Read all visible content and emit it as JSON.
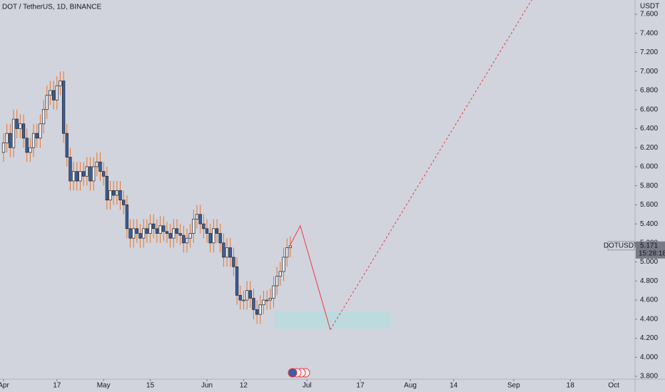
{
  "chart_data": {
    "type": "candlestick",
    "title": "DOT / TetherUS, 1D, BINANCE",
    "currency_label": "USDT",
    "symbol": "DOTUSDT",
    "last_price": {
      "value": 5.171,
      "label": "5.171"
    },
    "countdown": "15:28:18",
    "up_color": "#e9edf4",
    "down_color": "#3d5f99",
    "wick_color": "#e8742c",
    "border_color": "#1e222d",
    "xlim": [
      -1.07,
      189.4
    ],
    "xticks": [
      {
        "value": 0,
        "label": "Apr"
      },
      {
        "value": 16,
        "label": "17"
      },
      {
        "value": 30,
        "label": "May"
      },
      {
        "value": 44,
        "label": "15"
      },
      {
        "value": 61,
        "label": "Jun"
      },
      {
        "value": 72,
        "label": "12"
      },
      {
        "value": 91,
        "label": "Jul"
      },
      {
        "value": 107,
        "label": "17"
      },
      {
        "value": 122,
        "label": "Aug"
      },
      {
        "value": 135,
        "label": "14"
      },
      {
        "value": 153,
        "label": "Sep"
      },
      {
        "value": 170,
        "label": "18"
      },
      {
        "value": 183,
        "label": "Oct"
      }
    ],
    "ylim": [
      3.77,
      7.75
    ],
    "yticks": [
      {
        "value": 3.8,
        "label": "3.800"
      },
      {
        "value": 4.0,
        "label": "4.000"
      },
      {
        "value": 4.2,
        "label": "4.200"
      },
      {
        "value": 4.4,
        "label": "4.400"
      },
      {
        "value": 4.6,
        "label": "4.600"
      },
      {
        "value": 4.8,
        "label": "4.800"
      },
      {
        "value": 5.0,
        "label": "5.000"
      },
      {
        "value": 5.2,
        "label": "5.200"
      },
      {
        "value": 5.4,
        "label": "5.400"
      },
      {
        "value": 5.6,
        "label": "5.600"
      },
      {
        "value": 5.8,
        "label": "5.800"
      },
      {
        "value": 6.0,
        "label": "6.000"
      },
      {
        "value": 6.2,
        "label": "6.200"
      },
      {
        "value": 6.4,
        "label": "6.400"
      },
      {
        "value": 6.6,
        "label": "6.600"
      },
      {
        "value": 6.8,
        "label": "6.800"
      },
      {
        "value": 7.0,
        "label": "7.000"
      },
      {
        "value": 7.2,
        "label": "7.200"
      },
      {
        "value": 7.4,
        "label": "7.400"
      },
      {
        "value": 7.6,
        "label": "7.600"
      }
    ],
    "grid": false,
    "x": [
      0,
      1,
      2,
      3,
      4,
      5,
      6,
      7,
      8,
      9,
      10,
      11,
      12,
      13,
      14,
      15,
      16,
      17,
      18,
      19,
      20,
      21,
      22,
      23,
      24,
      25,
      26,
      27,
      28,
      29,
      30,
      31,
      32,
      33,
      34,
      35,
      36,
      37,
      38,
      39,
      40,
      41,
      42,
      43,
      44,
      45,
      46,
      47,
      48,
      49,
      50,
      51,
      52,
      53,
      54,
      55,
      56,
      57,
      58,
      59,
      60,
      61,
      62,
      63,
      64,
      65,
      66,
      67,
      68,
      69,
      70,
      71,
      72,
      73,
      74,
      75,
      76,
      77,
      78,
      79,
      80,
      81,
      82,
      83,
      84,
      85,
      86
    ],
    "open": [
      6.15,
      6.25,
      6.35,
      6.2,
      6.5,
      6.4,
      6.45,
      6.3,
      6.15,
      6.2,
      6.35,
      6.3,
      6.45,
      6.6,
      6.75,
      6.8,
      6.7,
      6.85,
      6.9,
      6.35,
      6.1,
      5.85,
      5.95,
      5.85,
      5.95,
      5.9,
      6.0,
      5.85,
      6.0,
      6.05,
      5.95,
      5.9,
      5.65,
      5.75,
      5.7,
      5.75,
      5.65,
      5.6,
      5.35,
      5.25,
      5.35,
      5.3,
      5.25,
      5.35,
      5.3,
      5.4,
      5.35,
      5.3,
      5.38,
      5.32,
      5.3,
      5.25,
      5.35,
      5.3,
      5.28,
      5.2,
      5.25,
      5.3,
      5.45,
      5.5,
      5.4,
      5.35,
      5.3,
      5.2,
      5.35,
      5.3,
      5.2,
      5.05,
      5.15,
      5.05,
      4.95,
      4.65,
      4.6,
      4.6,
      4.7,
      4.62,
      4.5,
      4.45,
      4.55,
      4.6,
      4.6,
      4.62,
      4.75,
      4.85,
      4.9,
      5.05,
      5.15
    ],
    "high": [
      6.35,
      6.45,
      6.45,
      6.6,
      6.6,
      6.55,
      6.55,
      6.4,
      6.3,
      6.45,
      6.45,
      6.55,
      6.7,
      6.85,
      6.9,
      6.9,
      6.95,
      7.0,
      7.0,
      6.45,
      6.2,
      6.05,
      6.05,
      6.05,
      6.05,
      6.1,
      6.1,
      6.1,
      6.15,
      6.15,
      6.05,
      6.0,
      5.85,
      5.85,
      5.85,
      5.85,
      5.75,
      5.7,
      5.45,
      5.45,
      5.45,
      5.4,
      5.45,
      5.45,
      5.5,
      5.5,
      5.45,
      5.48,
      5.48,
      5.42,
      5.4,
      5.45,
      5.45,
      5.4,
      5.38,
      5.35,
      5.4,
      5.55,
      5.6,
      5.6,
      5.5,
      5.45,
      5.4,
      5.45,
      5.45,
      5.4,
      5.3,
      5.25,
      5.25,
      5.15,
      5.05,
      4.75,
      4.7,
      4.8,
      4.8,
      4.72,
      4.6,
      4.65,
      4.7,
      4.7,
      4.72,
      4.85,
      4.95,
      5.0,
      5.15,
      5.25,
      5.27
    ],
    "low": [
      6.05,
      6.15,
      6.1,
      6.1,
      6.3,
      6.3,
      6.2,
      6.05,
      6.05,
      6.1,
      6.2,
      6.2,
      6.35,
      6.5,
      6.65,
      6.6,
      6.6,
      6.75,
      6.25,
      6.0,
      5.75,
      5.75,
      5.75,
      5.75,
      5.8,
      5.8,
      5.75,
      5.75,
      5.9,
      5.85,
      5.8,
      5.55,
      5.55,
      5.6,
      5.6,
      5.55,
      5.5,
      5.25,
      5.15,
      5.15,
      5.2,
      5.15,
      5.15,
      5.2,
      5.2,
      5.25,
      5.2,
      5.2,
      5.22,
      5.2,
      5.15,
      5.15,
      5.2,
      5.18,
      5.1,
      5.1,
      5.15,
      5.2,
      5.35,
      5.3,
      5.25,
      5.2,
      5.1,
      5.1,
      5.2,
      5.1,
      4.95,
      4.95,
      4.95,
      4.85,
      4.55,
      4.5,
      4.5,
      4.5,
      4.52,
      4.4,
      4.35,
      4.35,
      4.45,
      4.5,
      4.5,
      4.52,
      4.65,
      4.75,
      4.8,
      4.95,
      5.05
    ],
    "close": [
      6.25,
      6.35,
      6.2,
      6.5,
      6.4,
      6.45,
      6.3,
      6.15,
      6.2,
      6.35,
      6.3,
      6.45,
      6.6,
      6.75,
      6.8,
      6.7,
      6.85,
      6.9,
      6.35,
      6.1,
      5.85,
      5.95,
      5.85,
      5.95,
      5.9,
      6.0,
      5.85,
      6.0,
      6.05,
      5.95,
      5.9,
      5.65,
      5.75,
      5.7,
      5.75,
      5.65,
      5.6,
      5.35,
      5.25,
      5.35,
      5.3,
      5.25,
      5.35,
      5.3,
      5.4,
      5.35,
      5.3,
      5.38,
      5.32,
      5.3,
      5.25,
      5.35,
      5.3,
      5.28,
      5.2,
      5.25,
      5.3,
      5.45,
      5.5,
      5.4,
      5.35,
      5.3,
      5.2,
      5.35,
      5.3,
      5.2,
      5.05,
      5.15,
      5.05,
      4.95,
      4.65,
      4.6,
      4.6,
      4.7,
      4.62,
      4.5,
      4.45,
      4.55,
      4.6,
      4.6,
      4.62,
      4.75,
      4.85,
      4.9,
      5.05,
      5.15,
      5.17
    ],
    "projection": {
      "color": "#f23645",
      "x": [
        86,
        89,
        98
      ],
      "y": [
        5.18,
        5.38,
        4.29
      ]
    },
    "projection_dashed": {
      "color": "#f23645",
      "x": [
        98,
        158.4
      ],
      "y": [
        4.29,
        7.75
      ]
    },
    "target_zone": {
      "color": "#b8dbe0",
      "x": [
        81.3,
        116.2
      ],
      "y": [
        4.3,
        4.48
      ]
    }
  }
}
